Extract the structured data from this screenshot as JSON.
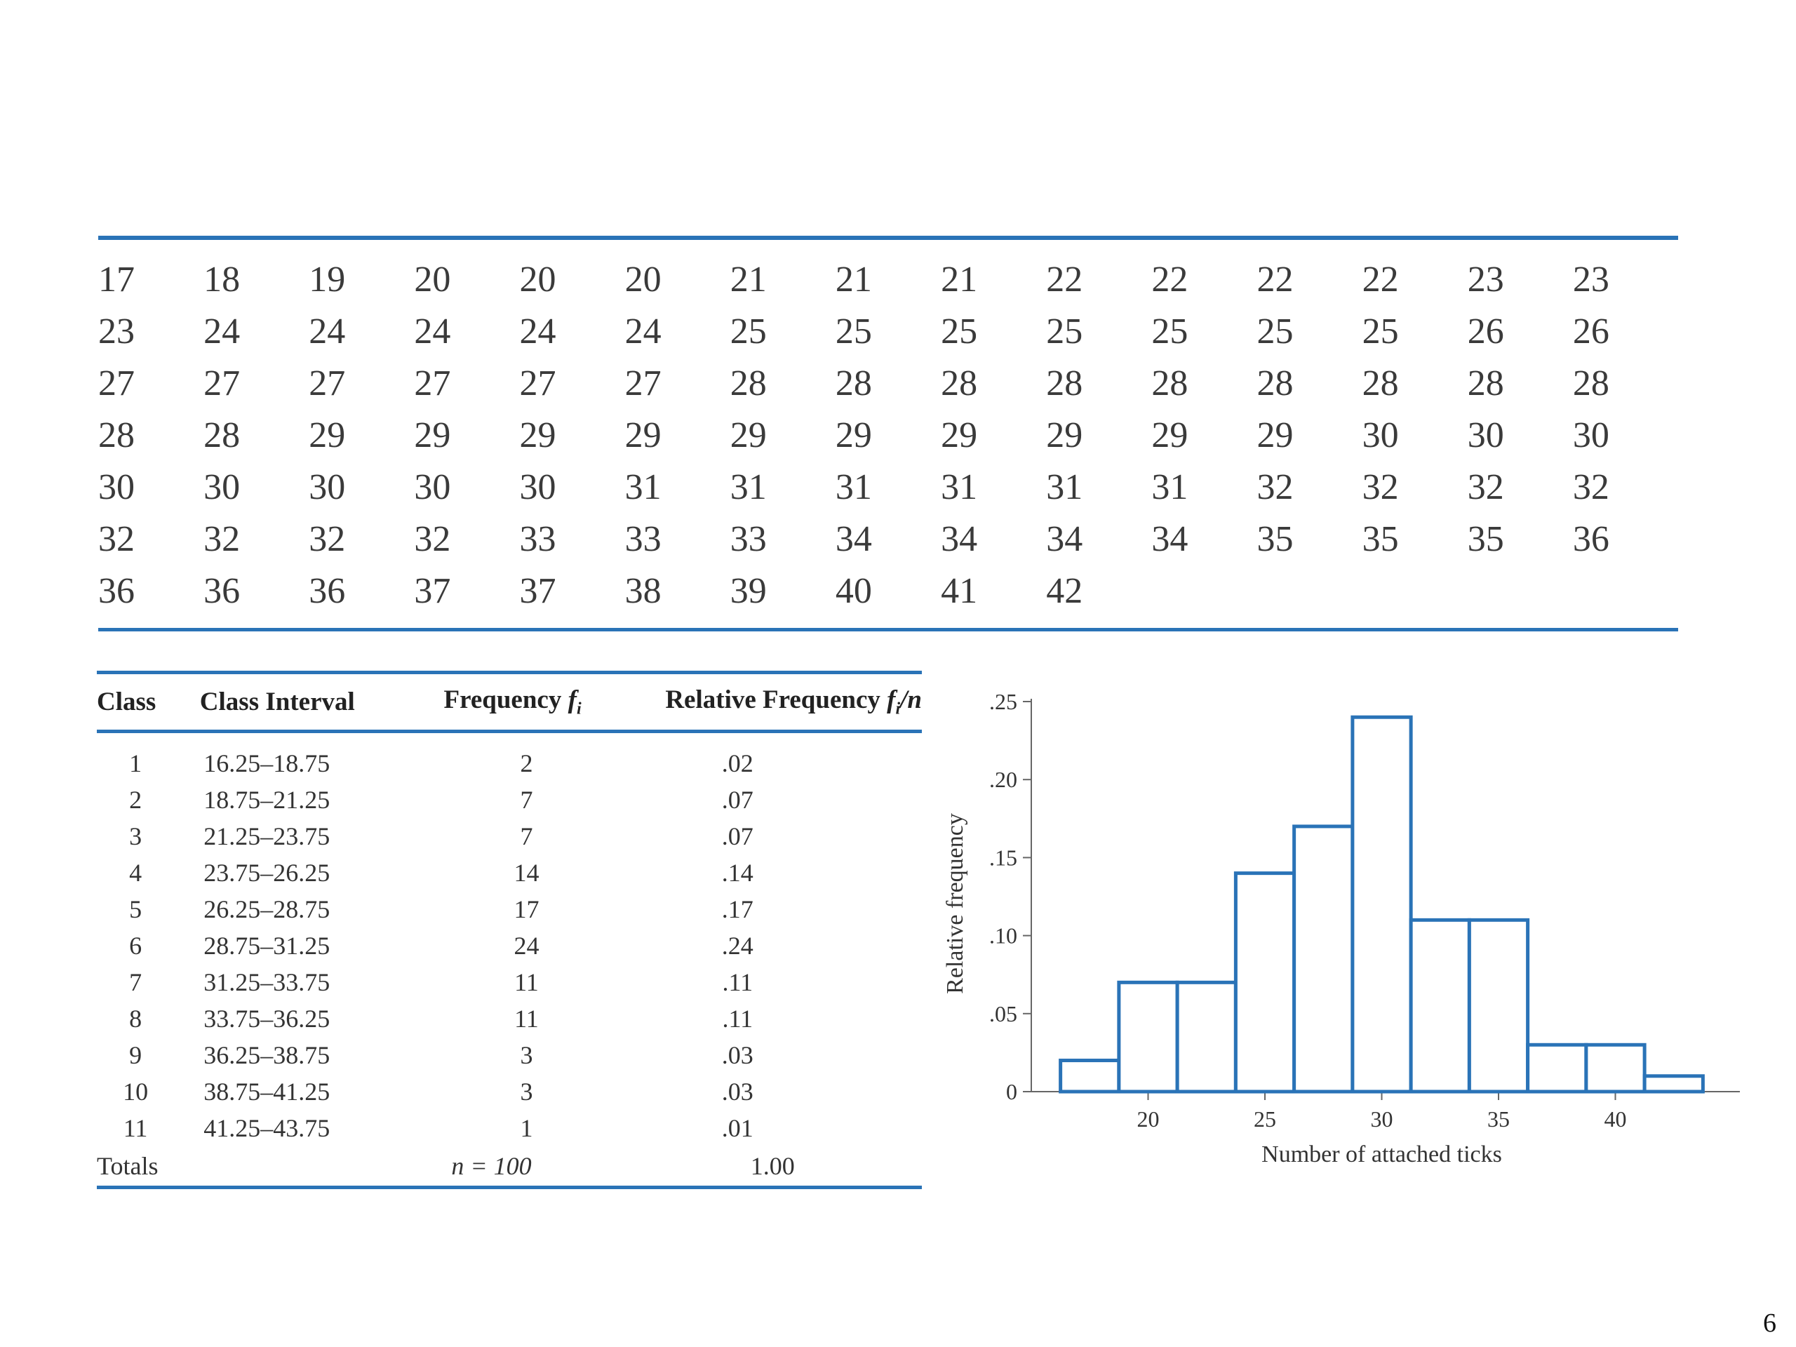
{
  "raw_data": [
    "17",
    "18",
    "19",
    "20",
    "20",
    "20",
    "21",
    "21",
    "21",
    "22",
    "22",
    "22",
    "22",
    "23",
    "23",
    "23",
    "24",
    "24",
    "24",
    "24",
    "24",
    "25",
    "25",
    "25",
    "25",
    "25",
    "25",
    "25",
    "26",
    "26",
    "27",
    "27",
    "27",
    "27",
    "27",
    "27",
    "28",
    "28",
    "28",
    "28",
    "28",
    "28",
    "28",
    "28",
    "28",
    "28",
    "28",
    "29",
    "29",
    "29",
    "29",
    "29",
    "29",
    "29",
    "29",
    "29",
    "29",
    "30",
    "30",
    "30",
    "30",
    "30",
    "30",
    "30",
    "30",
    "31",
    "31",
    "31",
    "31",
    "31",
    "31",
    "32",
    "32",
    "32",
    "32",
    "32",
    "32",
    "32",
    "32",
    "33",
    "33",
    "33",
    "34",
    "34",
    "34",
    "34",
    "35",
    "35",
    "35",
    "36",
    "36",
    "36",
    "36",
    "37",
    "37",
    "38",
    "39",
    "40",
    "41",
    "42"
  ],
  "table": {
    "headers": {
      "class": "Class",
      "interval": "Class Interval",
      "frequency": "Frequency ",
      "frequency_sym": "f",
      "frequency_sub": "i",
      "relative": "Relative Frequency ",
      "relative_sym": "f",
      "relative_sub": "i",
      "relative_tail": "/n"
    },
    "rows": [
      {
        "class": "1",
        "interval": "16.25–18.75",
        "freq": "2",
        "rel": ".02"
      },
      {
        "class": "2",
        "interval": "18.75–21.25",
        "freq": "7",
        "rel": ".07"
      },
      {
        "class": "3",
        "interval": "21.25–23.75",
        "freq": "7",
        "rel": ".07"
      },
      {
        "class": "4",
        "interval": "23.75–26.25",
        "freq": "14",
        "rel": ".14"
      },
      {
        "class": "5",
        "interval": "26.25–28.75",
        "freq": "17",
        "rel": ".17"
      },
      {
        "class": "6",
        "interval": "28.75–31.25",
        "freq": "24",
        "rel": ".24"
      },
      {
        "class": "7",
        "interval": "31.25–33.75",
        "freq": "11",
        "rel": ".11"
      },
      {
        "class": "8",
        "interval": "33.75–36.25",
        "freq": "11",
        "rel": ".11"
      },
      {
        "class": "9",
        "interval": "36.25–38.75",
        "freq": "3",
        "rel": ".03"
      },
      {
        "class": "10",
        "interval": "38.75–41.25",
        "freq": "3",
        "rel": ".03"
      },
      {
        "class": "11",
        "interval": "41.25–43.75",
        "freq": "1",
        "rel": ".01"
      }
    ],
    "totals": {
      "label": "Totals",
      "n": "n = 100",
      "rel": "1.00"
    }
  },
  "chart_data": {
    "type": "bar",
    "ylabel": "Relative frequency",
    "xlabel": "Number of attached ticks",
    "xlim": [
      15,
      45
    ],
    "ylim": [
      0,
      0.25
    ],
    "xticks": [
      20,
      25,
      30,
      35,
      40
    ],
    "yticks": [
      0,
      0.05,
      0.1,
      0.15,
      0.2,
      0.25
    ],
    "ytick_labels": [
      "0",
      ".05",
      ".10",
      ".15",
      ".20",
      ".25"
    ],
    "bins": [
      {
        "start": 16.25,
        "end": 18.75,
        "value": 0.02
      },
      {
        "start": 18.75,
        "end": 21.25,
        "value": 0.07
      },
      {
        "start": 21.25,
        "end": 23.75,
        "value": 0.07
      },
      {
        "start": 23.75,
        "end": 26.25,
        "value": 0.14
      },
      {
        "start": 26.25,
        "end": 28.75,
        "value": 0.17
      },
      {
        "start": 28.75,
        "end": 31.25,
        "value": 0.24
      },
      {
        "start": 31.25,
        "end": 33.75,
        "value": 0.11
      },
      {
        "start": 33.75,
        "end": 36.25,
        "value": 0.11
      },
      {
        "start": 36.25,
        "end": 38.75,
        "value": 0.03
      },
      {
        "start": 38.75,
        "end": 41.25,
        "value": 0.03
      },
      {
        "start": 41.25,
        "end": 43.75,
        "value": 0.01
      }
    ],
    "bar_color": "#2a73b7",
    "axis_color": "#666666"
  },
  "page_number": "6"
}
